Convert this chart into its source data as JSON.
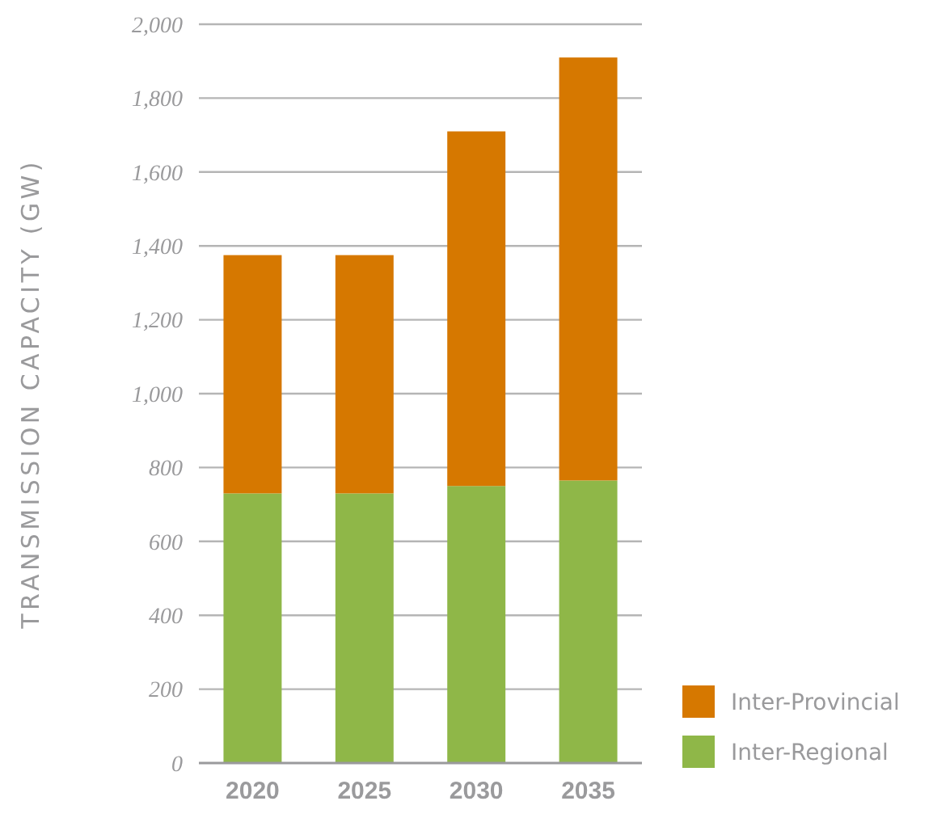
{
  "chart_data": {
    "type": "bar",
    "stacked": true,
    "ylabel": "TRANSMISSION CAPACITY (GW)",
    "categories": [
      "2020",
      "2025",
      "2030",
      "2035"
    ],
    "series": [
      {
        "name": "Inter-Regional",
        "color": "#8fb748",
        "values": [
          730,
          730,
          750,
          765
        ]
      },
      {
        "name": "Inter-Provincial",
        "color": "#d67800",
        "values": [
          645,
          645,
          960,
          1145
        ]
      }
    ],
    "ylim": [
      0,
      2000
    ],
    "yticks": [
      {
        "value": 0,
        "label": "0"
      },
      {
        "value": 200,
        "label": "200"
      },
      {
        "value": 400,
        "label": "400"
      },
      {
        "value": 600,
        "label": "600"
      },
      {
        "value": 800,
        "label": "800"
      },
      {
        "value": 1000,
        "label": "1,000"
      },
      {
        "value": 1200,
        "label": "1,200"
      },
      {
        "value": 1400,
        "label": "1,400"
      },
      {
        "value": 1600,
        "label": "1,600"
      },
      {
        "value": 1800,
        "label": "1,800"
      },
      {
        "value": 2000,
        "label": "2,000"
      }
    ],
    "grid": "y",
    "legend": "bottom right"
  }
}
